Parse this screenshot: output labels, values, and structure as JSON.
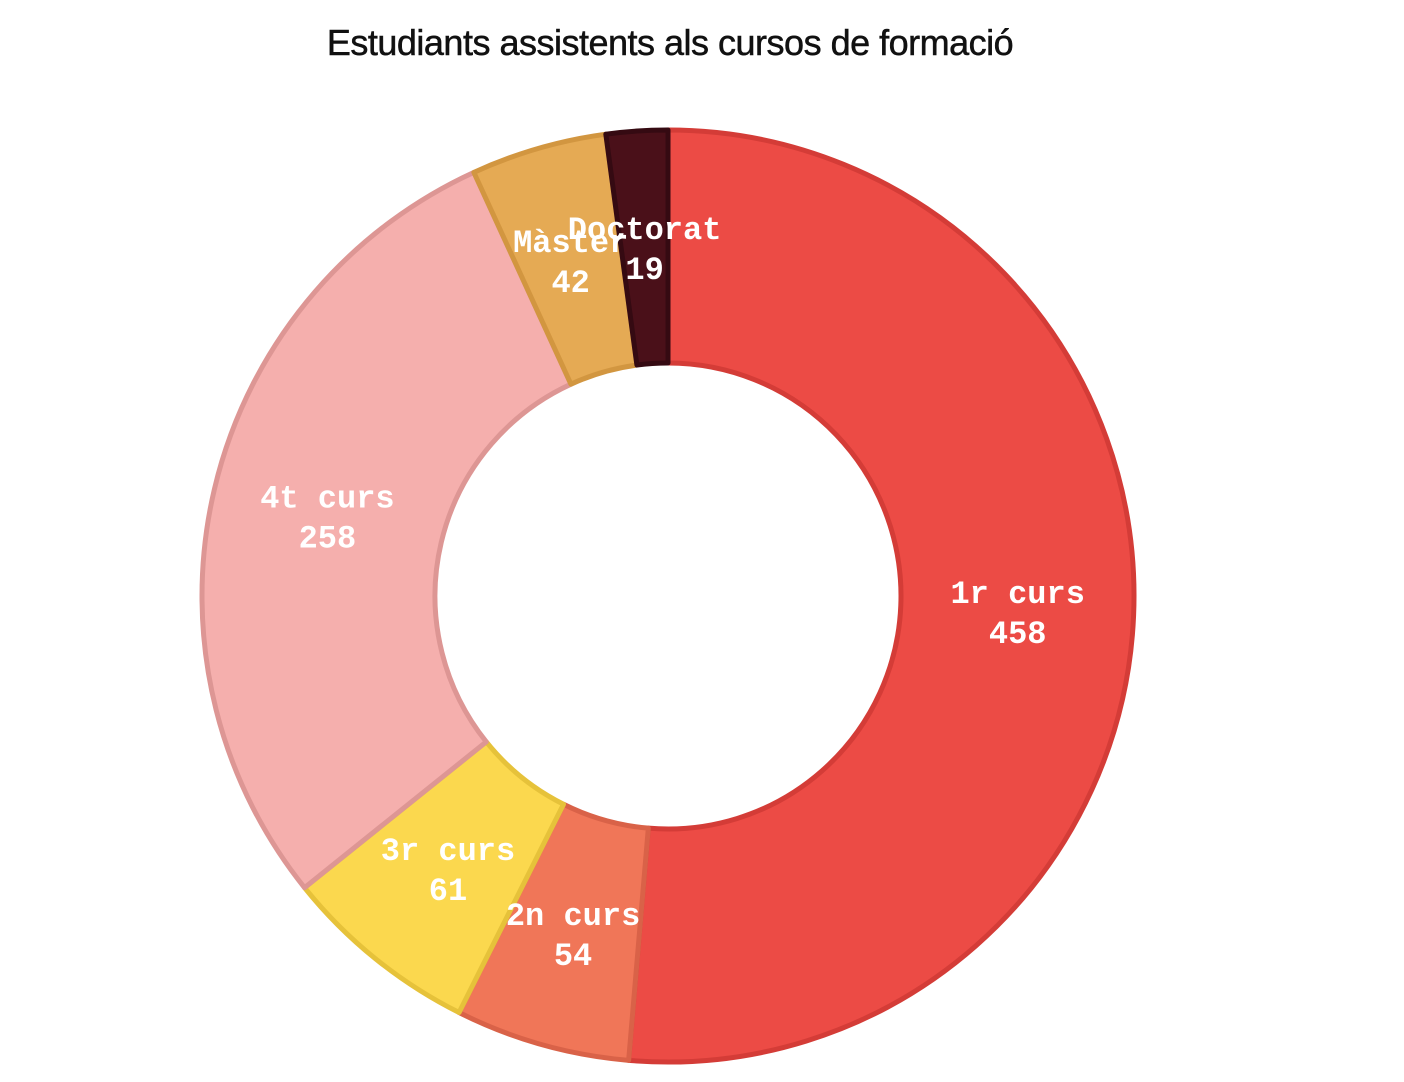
{
  "chart_data": {
    "type": "pie",
    "variant": "donut",
    "title": "Estudiants assistents als cursos de formació",
    "slices": [
      {
        "label": "1r curs",
        "value": 458,
        "color": "#ec4b45",
        "stroke": "#d43c37"
      },
      {
        "label": "2n curs",
        "value": 54,
        "color": "#f07658",
        "stroke": "#d96248"
      },
      {
        "label": "3r curs",
        "value": 61,
        "color": "#fbd84e",
        "stroke": "#e6c23a"
      },
      {
        "label": "4t curs",
        "value": 258,
        "color": "#f5afad",
        "stroke": "#dd9694"
      },
      {
        "label": "Màster",
        "value": 42,
        "color": "#e5aa54",
        "stroke": "#d29640"
      },
      {
        "label": "Doctorat",
        "value": 19,
        "color": "#4a1019",
        "stroke": "#350a12"
      }
    ],
    "start": "top",
    "direction": "clockwise",
    "legend": "none"
  }
}
